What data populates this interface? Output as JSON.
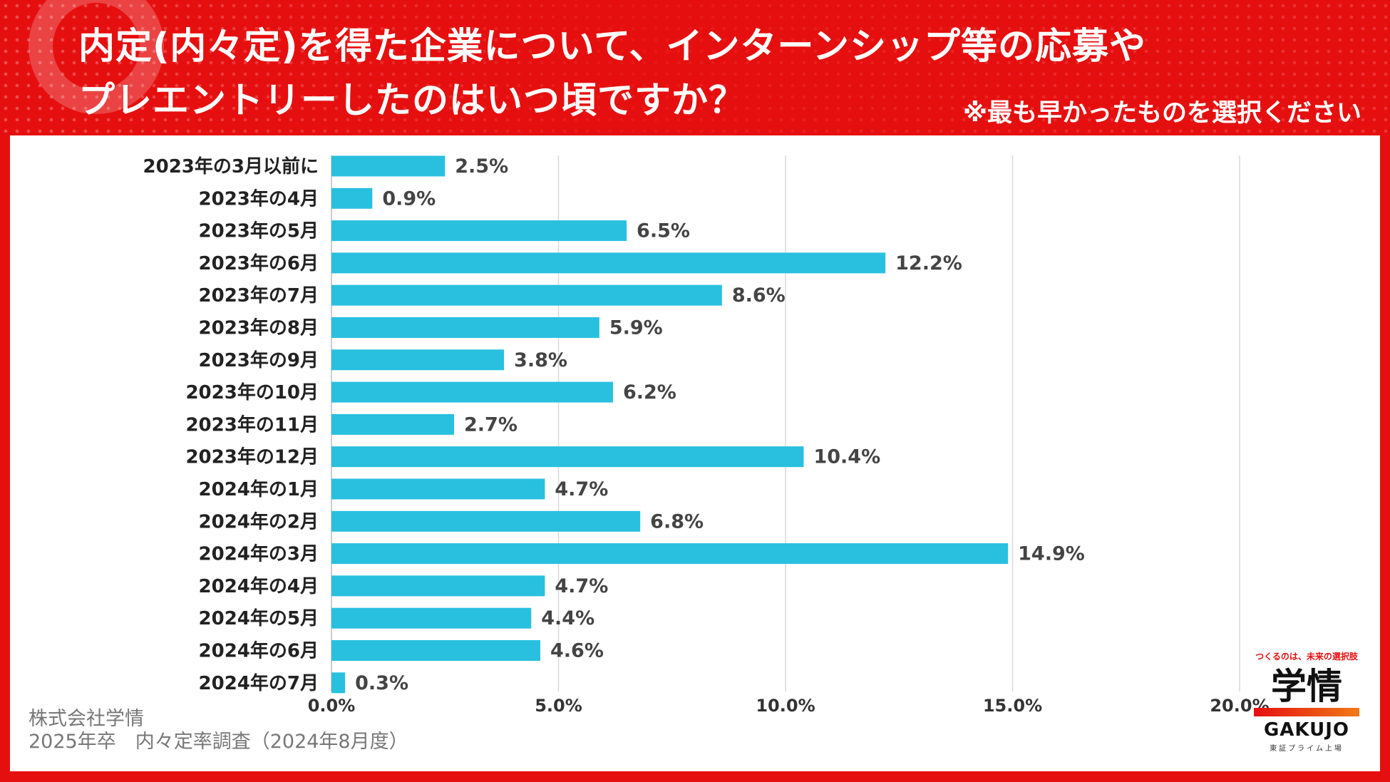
{
  "header": {
    "title_line1": "内定(内々定)を得た企業について、インターンシップ等の応募や",
    "title_line2": "プレエントリーしたのはいつ頃ですか？",
    "note": "※最も早かったものを選択ください"
  },
  "footer": {
    "company": "株式会社学情",
    "survey": "2025年卒　内々定率調査（2024年8月度）"
  },
  "logo": {
    "tagline": "つくるのは、未来の選択肢",
    "name": "学情",
    "name_en": "GAKUJO",
    "subline": "東証プライム上場"
  },
  "colors": {
    "background": "#e60f0f",
    "bar": "#29c0e0",
    "grid": "#d9d9d9"
  },
  "chart_data": {
    "type": "bar",
    "orientation": "horizontal",
    "title": "内定(内々定)を得た企業について、インターンシップ等の応募やプレエントリーしたのはいつ頃ですか？",
    "categories": [
      "2023年の3月以前に",
      "2023年の4月",
      "2023年の5月",
      "2023年の6月",
      "2023年の7月",
      "2023年の8月",
      "2023年の9月",
      "2023年の10月",
      "2023年の11月",
      "2023年の12月",
      "2024年の1月",
      "2024年の2月",
      "2024年の3月",
      "2024年の4月",
      "2024年の5月",
      "2024年の6月",
      "2024年の7月"
    ],
    "values": [
      2.5,
      0.9,
      6.5,
      12.2,
      8.6,
      5.9,
      3.8,
      6.2,
      2.7,
      10.4,
      4.7,
      6.8,
      14.9,
      4.7,
      4.4,
      4.6,
      0.3
    ],
    "value_labels": [
      "2.5%",
      "0.9%",
      "6.5%",
      "12.2%",
      "8.6%",
      "5.9%",
      "3.8%",
      "6.2%",
      "2.7%",
      "10.4%",
      "4.7%",
      "6.8%",
      "14.9%",
      "4.7%",
      "4.4%",
      "4.6%",
      "0.3%"
    ],
    "xlim": [
      0,
      20
    ],
    "xticks": [
      0,
      5,
      10,
      15,
      20
    ],
    "xtick_labels": [
      "0.0%",
      "5.0%",
      "10.0%",
      "15.0%",
      "20.0%"
    ],
    "grid": true,
    "xlabel": "",
    "ylabel": ""
  }
}
